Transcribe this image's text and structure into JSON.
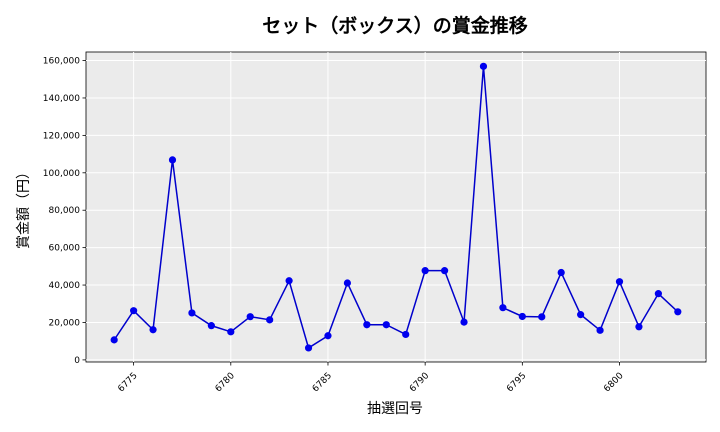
{
  "chart_data": {
    "type": "line",
    "title": "セット（ボックス）の賞金推移",
    "xlabel": "抽選回号",
    "ylabel": "賞金額（円）",
    "x": [
      6774,
      6775,
      6776,
      6777,
      6778,
      6779,
      6780,
      6781,
      6782,
      6783,
      6784,
      6785,
      6786,
      6787,
      6788,
      6789,
      6790,
      6791,
      6792,
      6793,
      6794,
      6795,
      6796,
      6797,
      6798,
      6799,
      6800,
      6801,
      6802,
      6803
    ],
    "series": [
      {
        "values": [
          10700,
          26300,
          16100,
          106900,
          25100,
          18300,
          15000,
          23100,
          21400,
          42300,
          6400,
          12900,
          41100,
          18800,
          18800,
          13600,
          47700,
          47700,
          20200,
          156900,
          27900,
          23200,
          23000,
          46700,
          24200,
          15800,
          41800,
          17700,
          35400,
          25700
        ]
      }
    ],
    "xticks": [
      6775,
      6780,
      6785,
      6790,
      6795,
      6800
    ],
    "yticks": [
      0,
      20000,
      40000,
      60000,
      80000,
      100000,
      120000,
      140000,
      160000
    ],
    "xlim": [
      6772.55,
      6804.45
    ],
    "ylim": [
      -1130,
      164570
    ],
    "grid": true,
    "line_color": "#0000cc",
    "marker_color": "#0000ee",
    "background_color": "#ebebeb"
  }
}
